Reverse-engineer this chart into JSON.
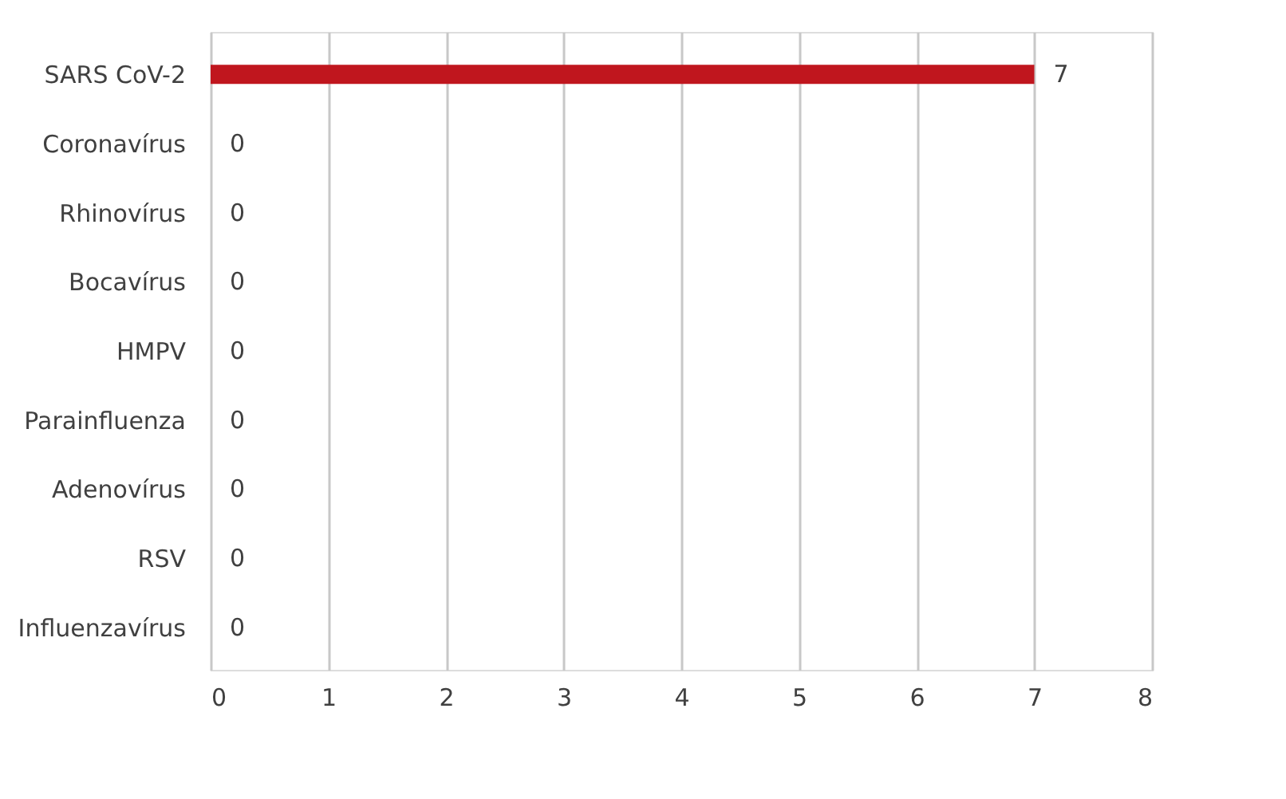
{
  "chart_data": {
    "type": "bar",
    "orientation": "horizontal",
    "categories": [
      "SARS CoV-2",
      "Coronavírus",
      "Rhinovírus",
      "Bocavírus",
      "HMPV",
      "Parainfluenza",
      "Adenovírus",
      "RSV",
      "Influenzavírus"
    ],
    "values": [
      7,
      0,
      0,
      0,
      0,
      0,
      0,
      0,
      0
    ],
    "color": "#c0161e",
    "xlim": [
      0,
      8
    ],
    "xticks": [
      0,
      1,
      2,
      3,
      4,
      5,
      6,
      7,
      8
    ],
    "grid": "x",
    "data_labels": true
  }
}
